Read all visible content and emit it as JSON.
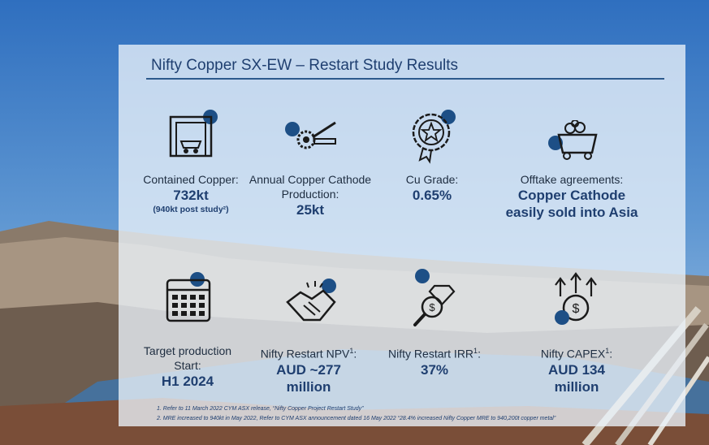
{
  "title": "Nifty Copper SX-EW – Restart Study Results",
  "metrics": [
    {
      "icon": "mine-entrance-icon",
      "label1": "Contained Copper:",
      "value": "732kt",
      "note": "(940kt post study²)"
    },
    {
      "icon": "conveyor-gear-icon",
      "label1": "Annual Copper Cathode",
      "label2": "Production:",
      "value": "25kt"
    },
    {
      "icon": "quality-badge-icon",
      "label1": "Cu Grade:",
      "value": "0.65%"
    },
    {
      "icon": "ore-cart-icon",
      "label1": "Offtake agreements:",
      "value": "Copper Cathode",
      "value2": "easily sold into Asia"
    },
    {
      "icon": "calendar-icon",
      "label1": "Target production",
      "label2": "Start:",
      "value": "H1 2024"
    },
    {
      "icon": "handshake-icon",
      "label1": "Nifty Restart NPV",
      "sup": "1",
      "label_suffix": ":",
      "value": "AUD ~277",
      "value2": "million"
    },
    {
      "icon": "magnifier-diamond-icon",
      "label1": "Nifty Restart IRR",
      "sup": "1",
      "label_suffix": ":",
      "value": "37%"
    },
    {
      "icon": "coin-arrows-icon",
      "label1": "Nifty CAPEX",
      "sup": "1",
      "label_suffix": ":",
      "value": "AUD 134",
      "value2": "million"
    }
  ],
  "footnotes": [
    "1. Refer to 11 March 2022 CYM ASX release, “Nifty Copper Project Restart Study”",
    "2. MRE increased to 940kt in May 2022, Refer to CYM ASX announcement dated 16 May 2022 “28.4% increased Nifty Copper MRE to 940,200t copper metal”"
  ],
  "colors": {
    "navy": "#1f3f70",
    "accent_dot": "#1d4f86",
    "sky": "#4d87c7"
  }
}
